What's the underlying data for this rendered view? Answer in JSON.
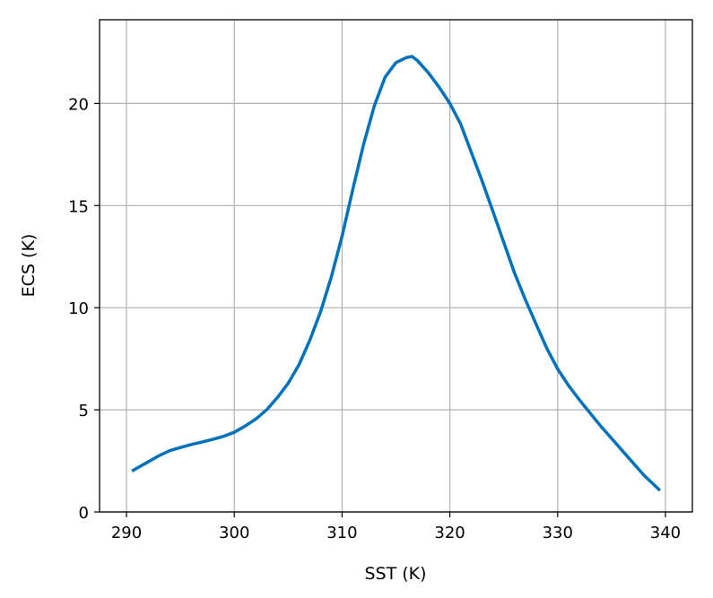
{
  "chart_data": {
    "type": "line",
    "title": "",
    "xlabel": "SST (K)",
    "ylabel": "ECS (K)",
    "xlim": [
      287.5,
      342.5
    ],
    "ylim": [
      0,
      24.1
    ],
    "xticks": [
      290,
      300,
      310,
      320,
      330,
      340
    ],
    "yticks": [
      0,
      5,
      10,
      15,
      20
    ],
    "grid": true,
    "color": "#0072bd",
    "series": [
      {
        "x": [
          290.5,
          292,
          293,
          294,
          295,
          296,
          297,
          298,
          299,
          300,
          301,
          302,
          303,
          304,
          305,
          306,
          307,
          308,
          309,
          310,
          311,
          312,
          313,
          314,
          315,
          316,
          316.5,
          317,
          318,
          319,
          320,
          321,
          322,
          323,
          324,
          325,
          326,
          327,
          328,
          329,
          330,
          331,
          332,
          333,
          334,
          335,
          336,
          337,
          338,
          339,
          339.5
        ],
        "y": [
          2.0,
          2.45,
          2.75,
          3.0,
          3.15,
          3.3,
          3.42,
          3.55,
          3.7,
          3.9,
          4.2,
          4.55,
          5.0,
          5.6,
          6.3,
          7.2,
          8.4,
          9.8,
          11.5,
          13.5,
          15.8,
          18.0,
          19.9,
          21.3,
          22.0,
          22.25,
          22.3,
          22.1,
          21.5,
          20.8,
          20.0,
          19.0,
          17.6,
          16.2,
          14.7,
          13.2,
          11.7,
          10.4,
          9.2,
          8.0,
          7.0,
          6.2,
          5.5,
          4.85,
          4.2,
          3.6,
          3.0,
          2.4,
          1.8,
          1.3,
          1.05
        ]
      }
    ]
  }
}
